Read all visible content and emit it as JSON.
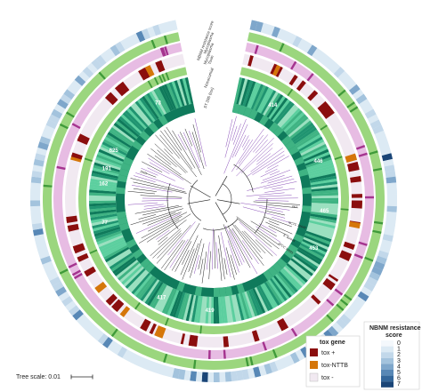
{
  "figure": {
    "track_labels": [
      "NBNM resistance score",
      "Mycoplasma",
      "Mycoplasma",
      "Toxin",
      "Nosocomial",
      "ST 295 (tox)"
    ],
    "cluster_numbers": [
      "414",
      "446",
      "465",
      "453",
      "625",
      "191",
      "162",
      "417",
      "419",
      "73",
      "77"
    ],
    "tip_labels": [
      "Vic1",
      "NCTC 10648",
      "S. aureus",
      "DRR",
      "ATCC 33591"
    ],
    "colors": {
      "outer_heat_low": "#e2eef7",
      "outer_heat_high": "#2c5a88",
      "green_band": "#9bd67e",
      "green_dark": "#3f9a3a",
      "pink_band": "#e7bce3",
      "pink_dark": "#a5348f",
      "tox_plus": "#8b0e0e",
      "tox_nttb": "#d5760a",
      "tox_minus": "#f1e9f1",
      "teal_light": "#9be0c0",
      "teal_mid": "#3fb383",
      "teal_dark": "#0f7a5b",
      "tree_purple": "#8a4fb8",
      "tree_green": "#4b9a3a",
      "tree_black": "#222222"
    }
  },
  "legend": {
    "tox": {
      "title": "tox gene",
      "items": [
        {
          "label": "tox +",
          "color": "#8b0e0e"
        },
        {
          "label": "tox-NTTB",
          "color": "#d5760a"
        },
        {
          "label": "tox -",
          "color": "#f1e9f1"
        }
      ]
    },
    "nbnm": {
      "title_line1": "NBNM resistance",
      "title_line2": "score",
      "scores": [
        "0",
        "1",
        "2",
        "3",
        "4",
        "5",
        "6",
        "7"
      ],
      "colors": [
        "#f4f8fc",
        "#dceaf4",
        "#c2d8ea",
        "#a3c3dd",
        "#7fa7cb",
        "#5888b6",
        "#34679b",
        "#1a4577"
      ]
    }
  },
  "scale": {
    "label": "Tree scale: 0.01"
  }
}
